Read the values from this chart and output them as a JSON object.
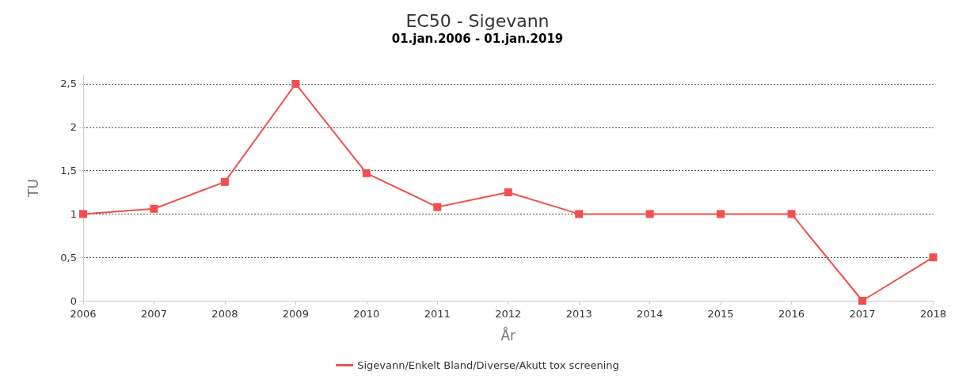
{
  "chart_data": {
    "type": "line",
    "title": "EC50 - Sigevann",
    "subtitle": "01.jan.2006 - 01.jan.2019",
    "xlabel": "År",
    "ylabel": "TU",
    "categories": [
      "2006",
      "2007",
      "2008",
      "2009",
      "2010",
      "2011",
      "2012",
      "2013",
      "2014",
      "2015",
      "2016",
      "2017",
      "2018"
    ],
    "series": [
      {
        "name": "Sigevann/Enkelt Bland/Diverse/Akutt tox screening",
        "color": "#f05050",
        "values": [
          1,
          1.06,
          1.37,
          2.5,
          1.47,
          1.08,
          1.25,
          1,
          1,
          1,
          1,
          0,
          0.5
        ]
      }
    ],
    "ylim": [
      0,
      2.6
    ],
    "yticks": [
      0,
      {
        "value": 0.5,
        "label": "0,5"
      },
      1,
      {
        "value": 1.5,
        "label": "1,5"
      },
      2,
      {
        "value": 2.5,
        "label": "2,5"
      }
    ],
    "grid": "y",
    "legend": "bottom",
    "marker": "square",
    "line_style": "solid"
  }
}
